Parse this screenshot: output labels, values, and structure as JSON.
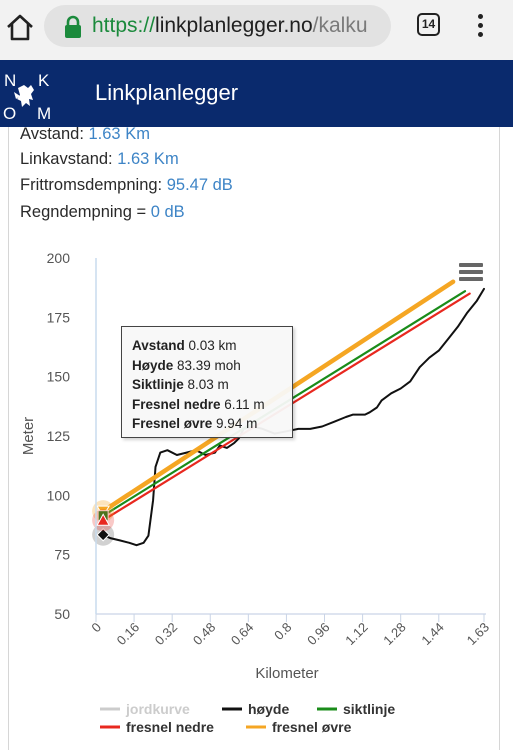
{
  "browser": {
    "url_scheme": "https://",
    "url_host": "linkplanlegger.no",
    "url_path": "/kalku",
    "tab_count": "14"
  },
  "header": {
    "title": "Linkplanlegger",
    "logo_letters": [
      "N",
      "K",
      "O",
      "M"
    ],
    "color": "#0a2a6d"
  },
  "info": {
    "avstand_label": "Avstand: ",
    "avstand_value": "1.63 Km",
    "linkavstand_label": "Linkavstand: ",
    "linkavstand_value": "1.63 Km",
    "frittrom_label": "Frittromsdempning: ",
    "frittrom_value": "95.47 dB",
    "regn_label": "Regndempning = ",
    "regn_value": "0 dB"
  },
  "tooltip": {
    "avstand_label": "Avstand",
    "avstand_value": " 0.03 km",
    "hoyde_label": "Høyde",
    "hoyde_value": " 83.39 moh",
    "sikt_label": "Siktlinje",
    "sikt_value": " 8.03 m",
    "fnedre_label": "Fresnel nedre",
    "fnedre_value": " 6.11 m",
    "fovre_label": "Fresnel øvre",
    "fovre_value": " 9.94 m"
  },
  "chart_data": {
    "type": "line",
    "title": "",
    "xlabel": "Kilometer",
    "ylabel": "Meter",
    "xlim": [
      0,
      1.63
    ],
    "ylim": [
      50,
      200
    ],
    "x_ticks": [
      "0",
      "0.16",
      "0.32",
      "0.48",
      "0.64",
      "0.8",
      "0.96",
      "1.12",
      "1.28",
      "1.44",
      "1.63"
    ],
    "y_ticks": [
      200,
      175,
      150,
      125,
      100,
      75,
      50
    ],
    "hover_x": 0.03,
    "series": [
      {
        "name": "jordkurve",
        "color": "#cccccc",
        "visible": false,
        "x": [
          0.03,
          1.63
        ],
        "y": [
          83.39,
          83.39
        ]
      },
      {
        "name": "høyde",
        "color": "#111111",
        "x": [
          0.03,
          0.06,
          0.1,
          0.14,
          0.17,
          0.2,
          0.22,
          0.24,
          0.25,
          0.27,
          0.3,
          0.34,
          0.38,
          0.42,
          0.46,
          0.5,
          0.52,
          0.55,
          0.58,
          0.6,
          0.62,
          0.66,
          0.7,
          0.75,
          0.8,
          0.85,
          0.88,
          0.9,
          0.95,
          1.0,
          1.05,
          1.08,
          1.1,
          1.13,
          1.15,
          1.18,
          1.2,
          1.24,
          1.28,
          1.32,
          1.36,
          1.4,
          1.44,
          1.48,
          1.52,
          1.56,
          1.6,
          1.63
        ],
        "y": [
          83.39,
          82,
          81,
          80,
          79,
          80,
          83,
          98,
          112,
          118,
          119,
          117,
          118,
          119,
          117,
          118,
          121,
          120,
          122,
          124,
          128,
          129,
          128,
          126,
          127,
          128,
          128,
          128,
          129,
          131,
          133,
          134,
          134,
          134,
          135,
          137,
          140,
          143,
          145,
          148,
          154,
          158,
          161,
          166,
          171,
          177,
          182,
          187
        ]
      },
      {
        "name": "siktlinje",
        "color": "#1a8c1a",
        "x": [
          0.03,
          1.55
        ],
        "y": [
          91.42,
          186
        ]
      },
      {
        "name": "fresnel nedre",
        "color": "#e8281f",
        "x": [
          0.03,
          1.57
        ],
        "y": [
          89.5,
          185
        ]
      },
      {
        "name": "fresnel øvre",
        "color": "#f5a623",
        "x": [
          0.03,
          1.5
        ],
        "y": [
          93.33,
          190
        ]
      }
    ],
    "legend": {
      "placement": "bottom"
    }
  }
}
